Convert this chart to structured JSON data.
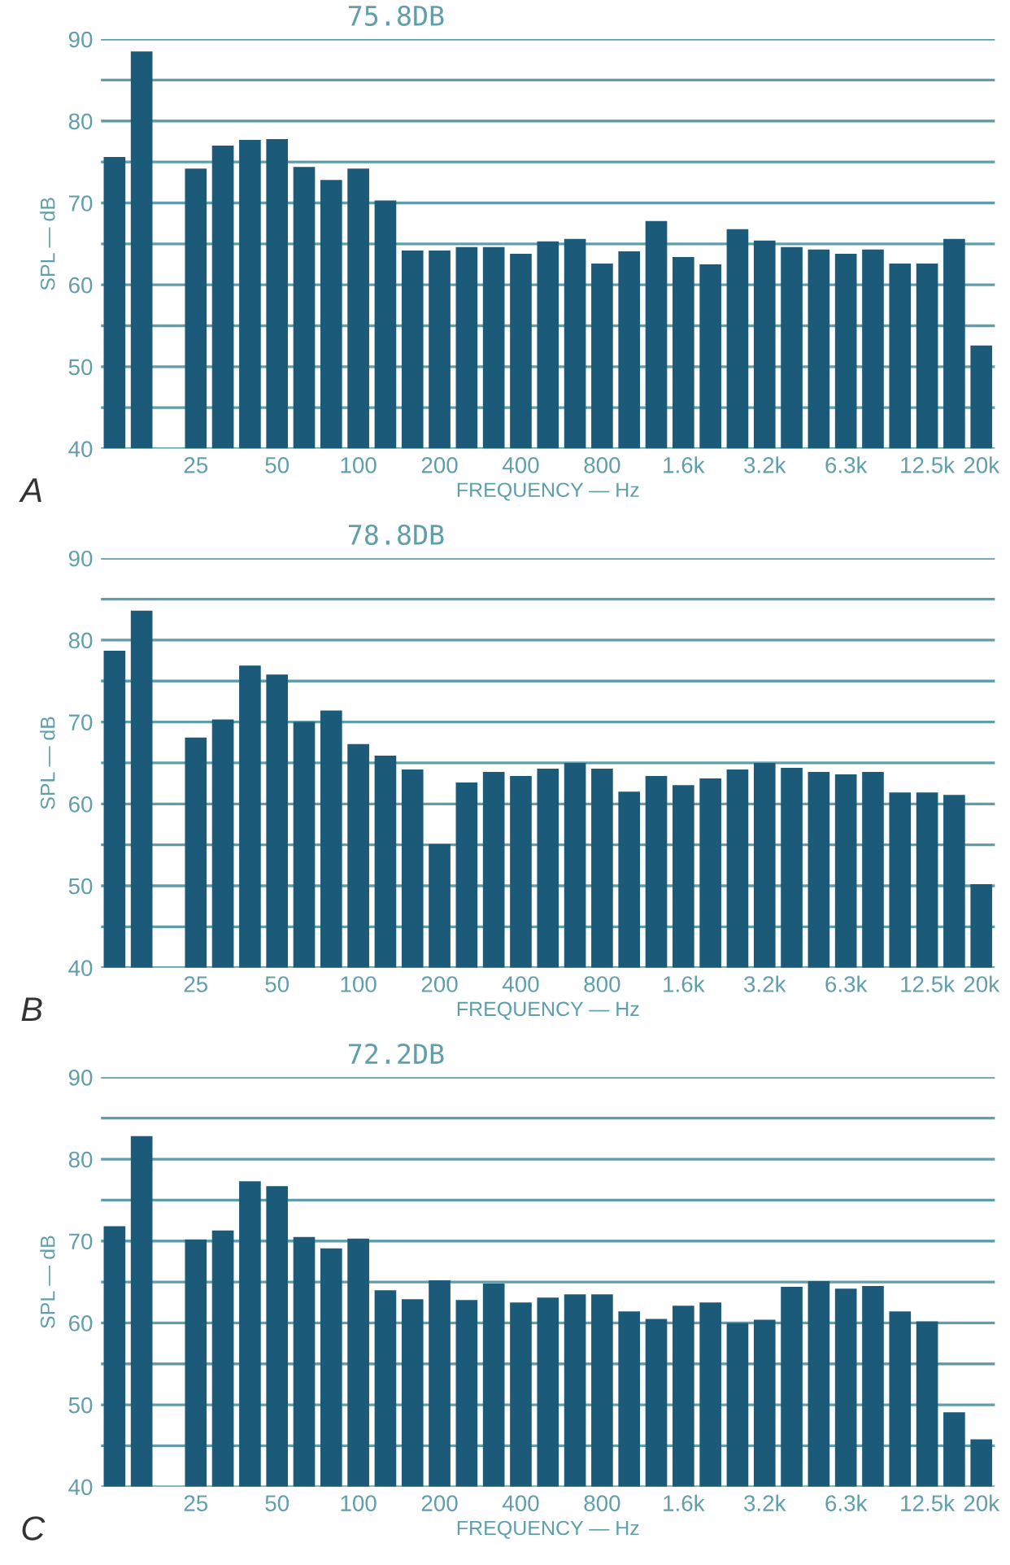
{
  "chart_data": [
    {
      "type": "bar",
      "title": "75.8DB",
      "xlabel": "FREQUENCY — Hz",
      "ylabel": "SPL — dB",
      "annotations": [
        "A"
      ],
      "categories": [
        null,
        null,
        null,
        "25",
        null,
        null,
        "50",
        null,
        null,
        "100",
        null,
        null,
        "200",
        null,
        null,
        "400",
        null,
        null,
        "800",
        null,
        null,
        "1.6k",
        null,
        null,
        "3.2k",
        null,
        null,
        "6.3k",
        null,
        null,
        "12.5k",
        null,
        "20k"
      ],
      "values": [
        75.6,
        88.5,
        null,
        74.2,
        77.0,
        77.7,
        77.8,
        74.4,
        72.8,
        74.2,
        70.3,
        64.2,
        64.2,
        64.6,
        64.6,
        63.8,
        65.3,
        65.6,
        62.6,
        64.1,
        67.8,
        63.4,
        62.5,
        66.8,
        65.4,
        64.6,
        64.3,
        63.8,
        64.3,
        62.6,
        62.6,
        65.6,
        52.6
      ],
      "color": "#1b5a78",
      "ylim": [
        40,
        90
      ],
      "yticks": [
        40,
        {
          "value": 45,
          "label": null
        },
        50,
        {
          "value": 55,
          "label": null
        },
        60,
        {
          "value": 65,
          "label": null
        },
        70,
        {
          "value": 75,
          "label": null
        },
        80,
        {
          "value": 85,
          "label": null
        },
        90
      ],
      "grid": "y"
    },
    {
      "type": "bar",
      "title": "78.8DB",
      "xlabel": "FREQUENCY — Hz",
      "ylabel": "SPL — dB",
      "annotations": [
        "B"
      ],
      "categories": [
        null,
        null,
        null,
        "25",
        null,
        null,
        "50",
        null,
        null,
        "100",
        null,
        null,
        "200",
        null,
        null,
        "400",
        null,
        null,
        "800",
        null,
        null,
        "1.6k",
        null,
        null,
        "3.2k",
        null,
        null,
        "6.3k",
        null,
        null,
        "12.5k",
        null,
        "20k"
      ],
      "values": [
        78.7,
        83.6,
        null,
        68.1,
        70.3,
        76.9,
        75.8,
        70.0,
        71.4,
        67.3,
        65.9,
        64.2,
        55.1,
        62.6,
        63.9,
        63.4,
        64.3,
        65.0,
        64.3,
        61.5,
        63.4,
        62.3,
        63.1,
        64.2,
        65.0,
        64.4,
        63.9,
        63.6,
        63.9,
        61.4,
        61.4,
        61.1,
        50.2
      ],
      "color": "#1b5a78",
      "ylim": [
        40,
        90
      ],
      "yticks": [
        40,
        {
          "value": 45,
          "label": null
        },
        50,
        {
          "value": 55,
          "label": null
        },
        60,
        {
          "value": 65,
          "label": null
        },
        70,
        {
          "value": 75,
          "label": null
        },
        80,
        {
          "value": 85,
          "label": null
        },
        90
      ],
      "grid": "y"
    },
    {
      "type": "bar",
      "title": "72.2DB",
      "xlabel": "FREQUENCY — Hz",
      "ylabel": "SPL — dB",
      "annotations": [
        "C"
      ],
      "categories": [
        null,
        null,
        null,
        "25",
        null,
        null,
        "50",
        null,
        null,
        "100",
        null,
        null,
        "200",
        null,
        null,
        "400",
        null,
        null,
        "800",
        null,
        null,
        "1.6k",
        null,
        null,
        "3.2k",
        null,
        null,
        "6.3k",
        null,
        null,
        "12.5k",
        null,
        "20k"
      ],
      "values": [
        71.8,
        82.8,
        null,
        70.2,
        71.3,
        77.3,
        76.7,
        70.5,
        69.1,
        70.3,
        64.0,
        62.9,
        65.2,
        62.8,
        64.8,
        62.5,
        63.1,
        63.5,
        63.5,
        61.4,
        60.5,
        62.1,
        62.5,
        60.0,
        60.4,
        64.4,
        65.1,
        64.2,
        64.5,
        61.4,
        60.2,
        49.1,
        45.8
      ],
      "color": "#1b5a78",
      "ylim": [
        40,
        90
      ],
      "yticks": [
        40,
        {
          "value": 45,
          "label": null
        },
        50,
        {
          "value": 55,
          "label": null
        },
        60,
        {
          "value": 65,
          "label": null
        },
        70,
        {
          "value": 75,
          "label": null
        },
        80,
        {
          "value": 85,
          "label": null
        },
        90
      ],
      "grid": "y"
    }
  ]
}
